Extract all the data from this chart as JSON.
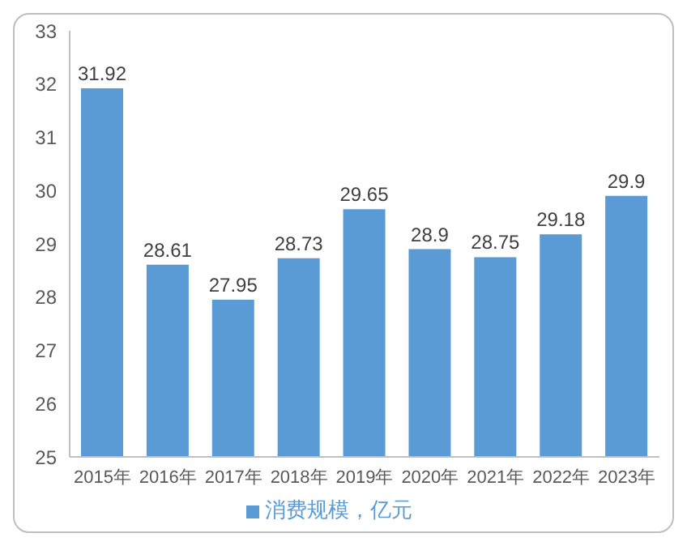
{
  "chart_data": {
    "type": "bar",
    "categories": [
      "2015年",
      "2016年",
      "2017年",
      "2018年",
      "2019年",
      "2020年",
      "2021年",
      "2022年",
      "2023年"
    ],
    "series": [
      {
        "name": "消费规模，亿元",
        "color": "#5b9bd5",
        "values": [
          31.92,
          28.61,
          27.95,
          28.73,
          29.65,
          28.9,
          28.75,
          29.18,
          29.9
        ]
      }
    ],
    "ylim": [
      25,
      33
    ],
    "yticks": [
      25,
      26,
      27,
      28,
      29,
      30,
      31,
      32,
      33
    ],
    "grid": false,
    "legend": "bottom",
    "data_labels": true
  }
}
